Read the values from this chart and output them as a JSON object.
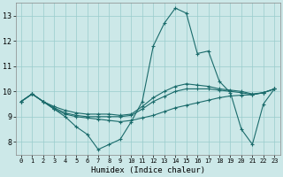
{
  "xlabel": "Humidex (Indice chaleur)",
  "bg_color": "#cce8e8",
  "grid_color": "#99cccc",
  "line_color": "#1a6b6b",
  "xlim": [
    -0.5,
    23.5
  ],
  "ylim": [
    7.5,
    13.5
  ],
  "xticks": [
    0,
    1,
    2,
    3,
    4,
    5,
    6,
    7,
    8,
    9,
    10,
    11,
    12,
    13,
    14,
    15,
    16,
    17,
    18,
    19,
    20,
    21,
    22,
    23
  ],
  "yticks": [
    8,
    9,
    10,
    11,
    12,
    13
  ],
  "lines": [
    [
      9.6,
      9.9,
      9.6,
      9.3,
      9.0,
      8.6,
      8.3,
      7.7,
      7.9,
      8.1,
      8.8,
      9.6,
      11.8,
      12.7,
      13.3,
      13.1,
      11.5,
      11.6,
      10.4,
      9.95,
      8.5,
      7.9,
      9.5,
      10.1
    ],
    [
      9.6,
      9.9,
      9.6,
      9.3,
      9.1,
      9.0,
      8.95,
      8.9,
      8.85,
      8.8,
      8.85,
      8.95,
      9.05,
      9.2,
      9.35,
      9.45,
      9.55,
      9.65,
      9.75,
      9.82,
      9.85,
      9.87,
      9.95,
      10.1
    ],
    [
      9.6,
      9.9,
      9.6,
      9.35,
      9.15,
      9.05,
      9.0,
      9.0,
      9.0,
      9.0,
      9.05,
      9.3,
      9.6,
      9.8,
      10.0,
      10.1,
      10.1,
      10.1,
      10.05,
      10.0,
      9.95,
      9.87,
      9.95,
      10.1
    ],
    [
      9.6,
      9.9,
      9.6,
      9.4,
      9.25,
      9.15,
      9.1,
      9.1,
      9.1,
      9.05,
      9.1,
      9.4,
      9.75,
      10.0,
      10.2,
      10.3,
      10.25,
      10.2,
      10.1,
      10.05,
      10.0,
      9.9,
      9.95,
      10.1
    ]
  ]
}
